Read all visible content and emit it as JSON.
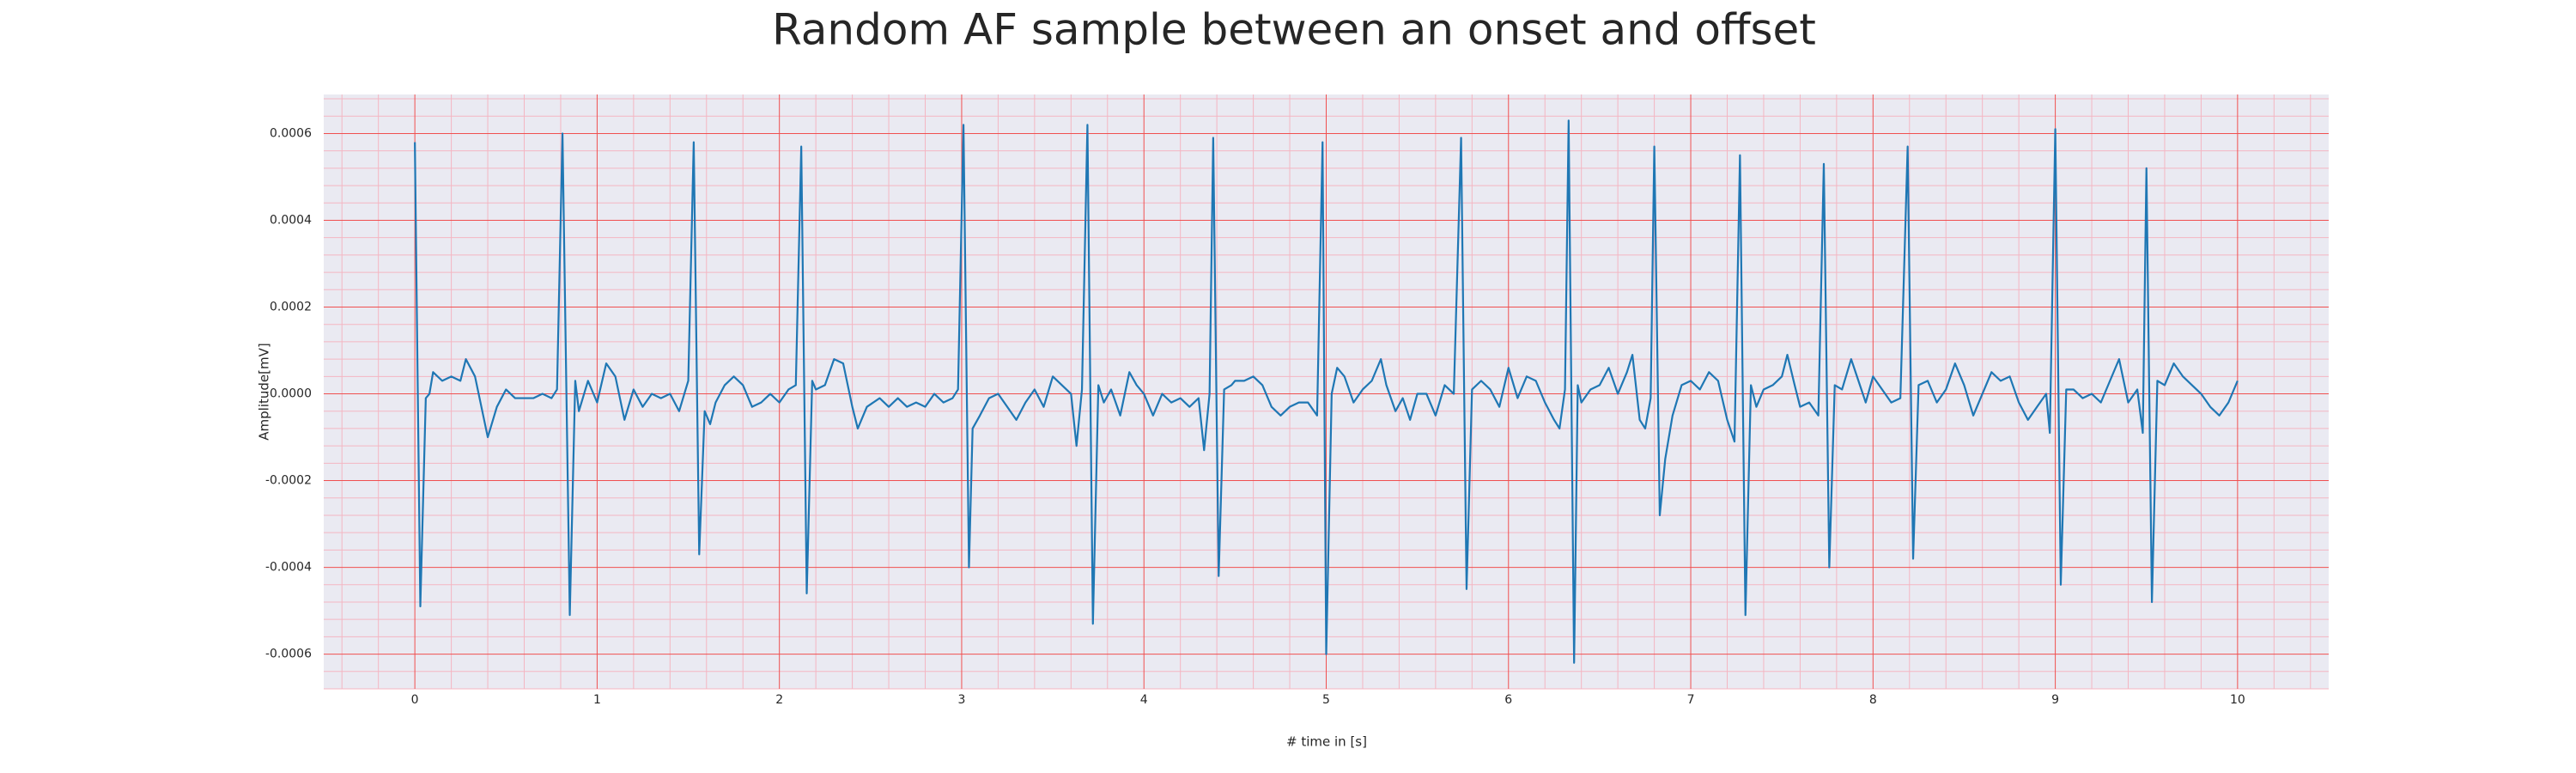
{
  "chart_data": {
    "type": "line",
    "title": "Random AF sample between an onset and offset",
    "x_label": "# time in [s]",
    "y_label": "Amplitude[mV]",
    "color": "#1f77b4",
    "grid": true,
    "minor_grid": true,
    "xlim": [
      -0.5,
      10.5
    ],
    "ylim": [
      -0.00068,
      0.00069
    ],
    "xticks": [
      0,
      1,
      2,
      3,
      4,
      5,
      6,
      7,
      8,
      9,
      10
    ],
    "yticks": [
      -0.0006,
      -0.0004,
      -0.0002,
      {
        "value": 0,
        "label": "0.0000"
      },
      0.0002,
      0.0004,
      0.0006
    ],
    "x": [
      0.0,
      0.03,
      0.06,
      0.08,
      0.1,
      0.15,
      0.2,
      0.25,
      0.28,
      0.33,
      0.38,
      0.4,
      0.45,
      0.5,
      0.55,
      0.6,
      0.65,
      0.7,
      0.75,
      0.78,
      0.81,
      0.85,
      0.88,
      0.9,
      0.95,
      1.0,
      1.05,
      1.1,
      1.15,
      1.2,
      1.25,
      1.3,
      1.35,
      1.4,
      1.45,
      1.5,
      1.53,
      1.56,
      1.59,
      1.62,
      1.65,
      1.7,
      1.75,
      1.8,
      1.85,
      1.9,
      1.95,
      2.0,
      2.05,
      2.09,
      2.12,
      2.15,
      2.18,
      2.2,
      2.25,
      2.3,
      2.35,
      2.4,
      2.43,
      2.48,
      2.55,
      2.6,
      2.65,
      2.7,
      2.75,
      2.8,
      2.85,
      2.9,
      2.95,
      2.98,
      3.01,
      3.04,
      3.06,
      3.1,
      3.15,
      3.2,
      3.25,
      3.3,
      3.35,
      3.4,
      3.45,
      3.5,
      3.55,
      3.6,
      3.63,
      3.66,
      3.69,
      3.72,
      3.75,
      3.78,
      3.82,
      3.87,
      3.92,
      3.96,
      4.0,
      4.05,
      4.1,
      4.15,
      4.2,
      4.25,
      4.3,
      4.33,
      4.36,
      4.38,
      4.41,
      4.44,
      4.48,
      4.5,
      4.55,
      4.6,
      4.65,
      4.7,
      4.75,
      4.8,
      4.85,
      4.9,
      4.95,
      4.98,
      5.0,
      5.03,
      5.06,
      5.1,
      5.15,
      5.2,
      5.25,
      5.3,
      5.33,
      5.38,
      5.42,
      5.46,
      5.5,
      5.55,
      5.6,
      5.65,
      5.7,
      5.74,
      5.77,
      5.8,
      5.85,
      5.9,
      5.95,
      6.0,
      6.05,
      6.1,
      6.15,
      6.2,
      6.25,
      6.28,
      6.31,
      6.33,
      6.36,
      6.38,
      6.4,
      6.45,
      6.5,
      6.55,
      6.6,
      6.65,
      6.68,
      6.72,
      6.75,
      6.78,
      6.8,
      6.83,
      6.86,
      6.9,
      6.95,
      7.0,
      7.05,
      7.1,
      7.15,
      7.2,
      7.24,
      7.27,
      7.3,
      7.33,
      7.36,
      7.4,
      7.45,
      7.5,
      7.53,
      7.57,
      7.6,
      7.65,
      7.7,
      7.73,
      7.76,
      7.79,
      7.83,
      7.88,
      7.92,
      7.96,
      8.0,
      8.05,
      8.1,
      8.15,
      8.19,
      8.22,
      8.25,
      8.3,
      8.35,
      8.4,
      8.45,
      8.5,
      8.55,
      8.6,
      8.65,
      8.7,
      8.75,
      8.8,
      8.85,
      8.9,
      8.95,
      8.97,
      9.0,
      9.03,
      9.06,
      9.1,
      9.15,
      9.2,
      9.25,
      9.3,
      9.35,
      9.4,
      9.45,
      9.48,
      9.5,
      9.53,
      9.56,
      9.6,
      9.65,
      9.7,
      9.75,
      9.8,
      9.85,
      9.9,
      9.95,
      10.0
    ],
    "values": [
      0.00058,
      -0.00049,
      -1e-05,
      0.0,
      5e-05,
      3e-05,
      4e-05,
      3e-05,
      8e-05,
      4e-05,
      -6e-05,
      -0.0001,
      -3e-05,
      1e-05,
      -1e-05,
      -1e-05,
      -1e-05,
      0.0,
      -1e-05,
      1e-05,
      0.0006,
      -0.00051,
      3e-05,
      -4e-05,
      3e-05,
      -2e-05,
      7e-05,
      4e-05,
      -6e-05,
      1e-05,
      -3e-05,
      0.0,
      -1e-05,
      0.0,
      -4e-05,
      3e-05,
      0.00058,
      -0.00037,
      -4e-05,
      -7e-05,
      -2e-05,
      2e-05,
      4e-05,
      2e-05,
      -3e-05,
      -2e-05,
      0.0,
      -2e-05,
      1e-05,
      2e-05,
      0.00057,
      -0.00046,
      3e-05,
      1e-05,
      2e-05,
      8e-05,
      7e-05,
      -3e-05,
      -8e-05,
      -3e-05,
      -1e-05,
      -3e-05,
      -1e-05,
      -3e-05,
      -2e-05,
      -3e-05,
      0.0,
      -2e-05,
      -1e-05,
      1e-05,
      0.00062,
      -0.0004,
      -8e-05,
      -5e-05,
      -1e-05,
      0.0,
      -3e-05,
      -6e-05,
      -2e-05,
      1e-05,
      -3e-05,
      4e-05,
      2e-05,
      0.0,
      -0.00012,
      1e-05,
      0.00062,
      -0.00053,
      2e-05,
      -2e-05,
      1e-05,
      -5e-05,
      5e-05,
      2e-05,
      0.0,
      -5e-05,
      0.0,
      -2e-05,
      -1e-05,
      -3e-05,
      -1e-05,
      -0.00013,
      0.0,
      0.00059,
      -0.00042,
      1e-05,
      2e-05,
      3e-05,
      3e-05,
      4e-05,
      2e-05,
      -3e-05,
      -5e-05,
      -3e-05,
      -2e-05,
      -2e-05,
      -5e-05,
      0.00058,
      -0.0006,
      0.0,
      6e-05,
      4e-05,
      -2e-05,
      1e-05,
      3e-05,
      8e-05,
      2e-05,
      -4e-05,
      -1e-05,
      -6e-05,
      0.0,
      0.0,
      -5e-05,
      2e-05,
      0.0,
      0.00059,
      -0.00045,
      1e-05,
      3e-05,
      1e-05,
      -3e-05,
      6e-05,
      -1e-05,
      4e-05,
      3e-05,
      -2e-05,
      -6e-05,
      -8e-05,
      1e-05,
      0.00063,
      -0.00062,
      2e-05,
      -2e-05,
      1e-05,
      2e-05,
      6e-05,
      0.0,
      5e-05,
      9e-05,
      -6e-05,
      -8e-05,
      -1e-05,
      0.00057,
      -0.00028,
      -0.00015,
      -5e-05,
      2e-05,
      3e-05,
      1e-05,
      5e-05,
      3e-05,
      -6e-05,
      -0.00011,
      0.00055,
      -0.00051,
      2e-05,
      -3e-05,
      1e-05,
      2e-05,
      4e-05,
      9e-05,
      2e-05,
      -3e-05,
      -2e-05,
      -5e-05,
      0.00053,
      -0.0004,
      2e-05,
      1e-05,
      8e-05,
      3e-05,
      -2e-05,
      4e-05,
      1e-05,
      -2e-05,
      -1e-05,
      0.00057,
      -0.00038,
      2e-05,
      3e-05,
      -2e-05,
      1e-05,
      7e-05,
      2e-05,
      -5e-05,
      0.0,
      5e-05,
      3e-05,
      4e-05,
      -2e-05,
      -6e-05,
      -3e-05,
      0.0,
      -9e-05,
      0.00061,
      -0.00044,
      1e-05,
      1e-05,
      -1e-05,
      0.0,
      -2e-05,
      3e-05,
      8e-05,
      -2e-05,
      1e-05,
      -9e-05,
      0.00052,
      -0.00048,
      3e-05,
      2e-05,
      7e-05,
      4e-05,
      2e-05,
      0.0,
      -3e-05,
      -5e-05,
      -2e-05,
      3e-05
    ]
  }
}
